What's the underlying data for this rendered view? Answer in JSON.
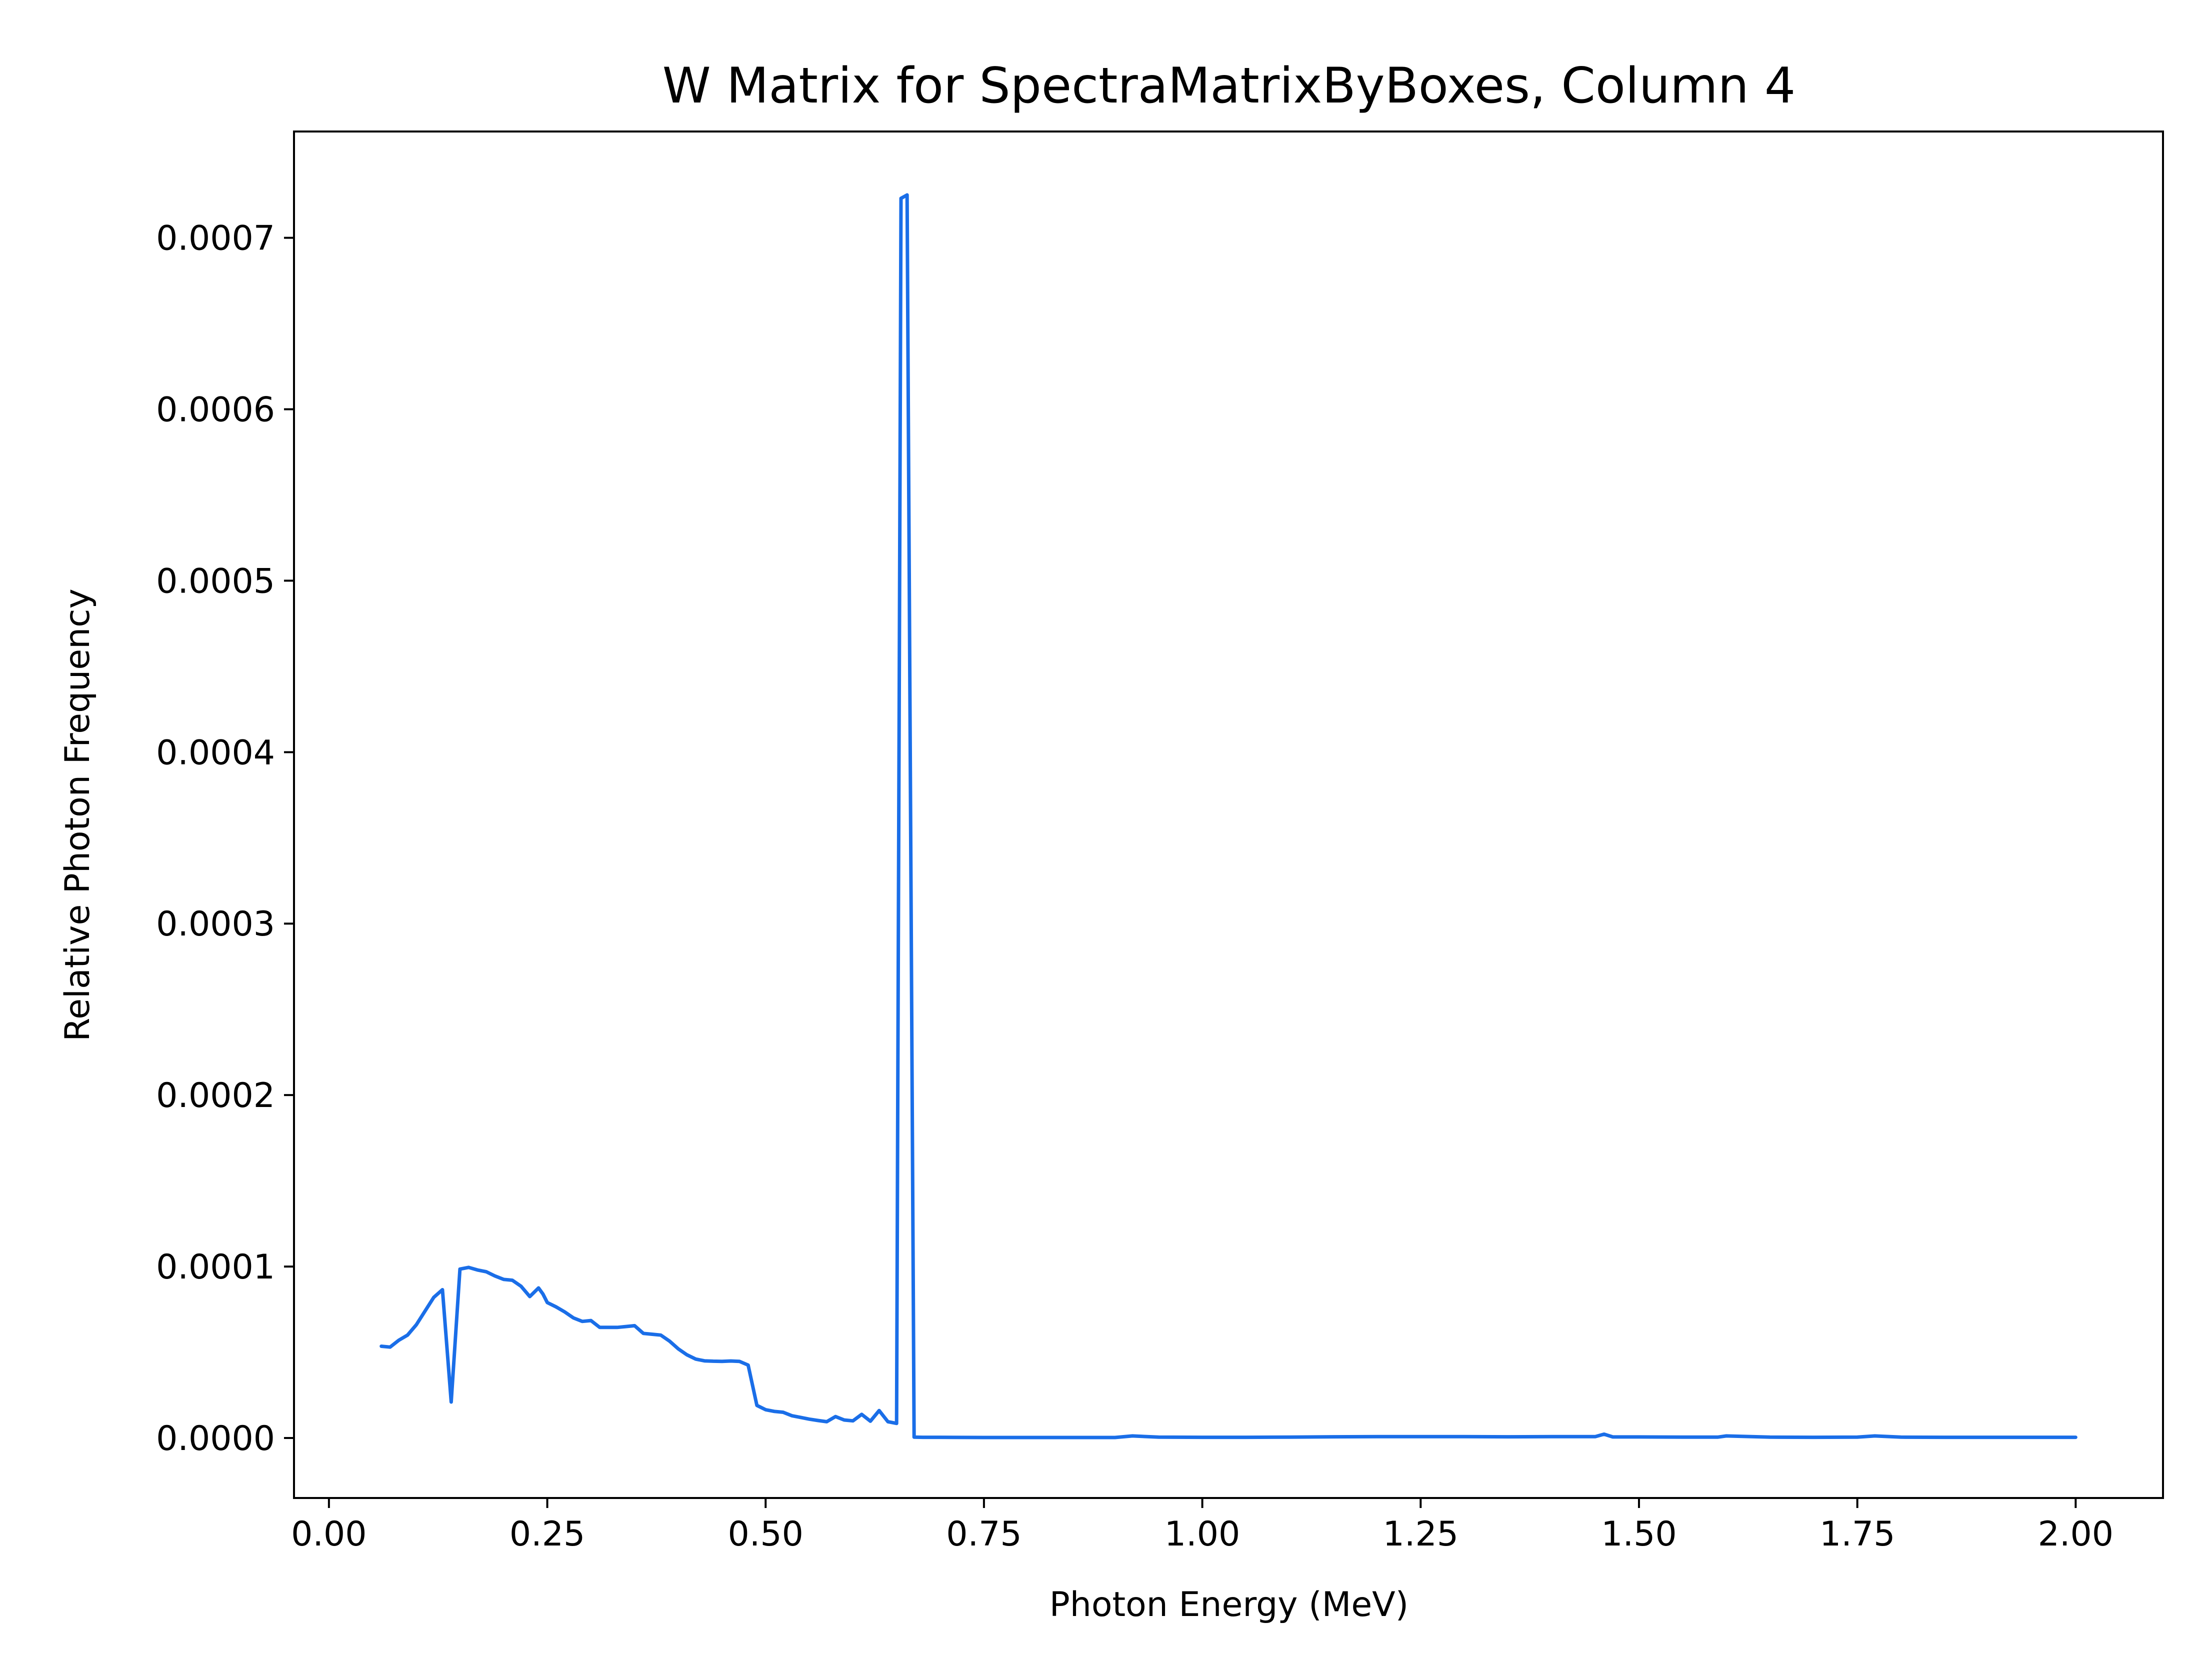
{
  "chart_data": {
    "type": "line",
    "title": "W Matrix for SpectraMatrixByBoxes, Column 4",
    "xlabel": "Photon Energy (MeV)",
    "ylabel": "Relative Photon Frequency",
    "xlim": [
      -0.04,
      2.1
    ],
    "ylim": [
      -3.5e-05,
      0.000762
    ],
    "xticks": [
      0.0,
      0.25,
      0.5,
      0.75,
      1.0,
      1.25,
      1.5,
      1.75,
      2.0
    ],
    "xtick_labels": [
      "0.00",
      "0.25",
      "0.50",
      "0.75",
      "1.00",
      "1.25",
      "1.50",
      "1.75",
      "2.00"
    ],
    "yticks": [
      0.0,
      0.0001,
      0.0002,
      0.0003,
      0.0004,
      0.0005,
      0.0006,
      0.0007
    ],
    "ytick_labels": [
      "0.0000",
      "0.0001",
      "0.0002",
      "0.0003",
      "0.0004",
      "0.0005",
      "0.0006",
      "0.0007"
    ],
    "grid": false,
    "color": "#1a6ee8",
    "series": [
      {
        "x": [
          0.06,
          0.07,
          0.08,
          0.09,
          0.1,
          0.11,
          0.12,
          0.13,
          0.14,
          0.15,
          0.16,
          0.17,
          0.18,
          0.19,
          0.2,
          0.21,
          0.22,
          0.23,
          0.24,
          0.245,
          0.25,
          0.26,
          0.27,
          0.28,
          0.29,
          0.3,
          0.31,
          0.32,
          0.33,
          0.34,
          0.35,
          0.36,
          0.37,
          0.38,
          0.39,
          0.4,
          0.41,
          0.42,
          0.43,
          0.44,
          0.45,
          0.46,
          0.47,
          0.48,
          0.49,
          0.5,
          0.51,
          0.52,
          0.53,
          0.54,
          0.55,
          0.56,
          0.57,
          0.58,
          0.59,
          0.6,
          0.61,
          0.62,
          0.63,
          0.64,
          0.65,
          0.655,
          0.662,
          0.67,
          0.68,
          0.7,
          0.75,
          0.8,
          0.85,
          0.9,
          0.92,
          0.95,
          1.0,
          1.05,
          1.1,
          1.15,
          1.2,
          1.25,
          1.3,
          1.35,
          1.4,
          1.45,
          1.46,
          1.47,
          1.5,
          1.55,
          1.59,
          1.6,
          1.65,
          1.7,
          1.75,
          1.77,
          1.8,
          1.85,
          1.9,
          1.95,
          2.0
        ],
        "y": [
          5.35e-05,
          5.3e-05,
          5.7e-05,
          6e-05,
          6.6e-05,
          7.4e-05,
          8.2e-05,
          8.65e-05,
          2.1e-05,
          9.85e-05,
          9.95e-05,
          9.8e-05,
          9.7e-05,
          9.45e-05,
          9.25e-05,
          9.2e-05,
          8.85e-05,
          8.25e-05,
          8.75e-05,
          8.4e-05,
          7.9e-05,
          7.65e-05,
          7.35e-05,
          7e-05,
          6.8e-05,
          6.85e-05,
          6.45e-05,
          6.45e-05,
          6.45e-05,
          6.5e-05,
          6.55e-05,
          6.1e-05,
          6.05e-05,
          6e-05,
          5.65e-05,
          5.2e-05,
          4.85e-05,
          4.6e-05,
          4.5e-05,
          4.48e-05,
          4.47e-05,
          4.49e-05,
          4.47e-05,
          4.25e-05,
          1.9e-05,
          1.65e-05,
          1.55e-05,
          1.5e-05,
          1.3e-05,
          1.2e-05,
          1.1e-05,
          1.02e-05,
          9.5e-06,
          1.25e-05,
          1.05e-05,
          1e-05,
          1.38e-05,
          9.8e-06,
          1.6e-05,
          9.5e-06,
          8.5e-06,
          0.000723,
          0.000725,
          5e-07,
          4e-07,
          4e-07,
          3e-07,
          3e-07,
          3e-07,
          3e-07,
          1.2e-06,
          5e-07,
          4e-07,
          4e-07,
          5e-07,
          7e-07,
          8e-07,
          8e-07,
          8e-07,
          7e-07,
          8e-07,
          8e-07,
          2.2e-06,
          6e-07,
          6e-07,
          5e-07,
          5e-07,
          1.2e-06,
          5e-07,
          4e-07,
          5e-07,
          1.2e-06,
          5e-07,
          4e-07,
          4e-07,
          4e-07,
          4e-07
        ]
      }
    ]
  }
}
